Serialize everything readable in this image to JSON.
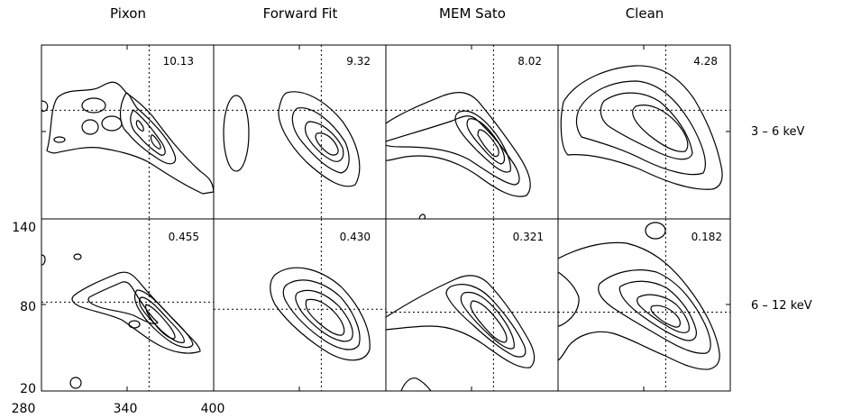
{
  "chart_data": {
    "type": "contour",
    "column_titles": [
      "Pixon",
      "Forward Fit",
      "MEM Sato",
      "Clean"
    ],
    "row_labels": [
      "3 – 6 keV",
      "6 – 12 keV"
    ],
    "panel_values": [
      [
        "10.13",
        "9.32",
        "8.02",
        "4.28"
      ],
      [
        "0.455",
        "0.430",
        "0.321",
        "0.182"
      ]
    ],
    "x_ticks": [
      "280",
      "340",
      "400"
    ],
    "y_ticks": [
      "140",
      "80",
      "20"
    ],
    "x_ticks_values": [
      280,
      340,
      400
    ],
    "y_ticks_values": [
      140,
      80,
      20
    ],
    "xlim": [
      280,
      400
    ],
    "ylim": [
      20,
      140
    ],
    "crosshair": [
      [
        [
          355,
          95
        ],
        [
          355,
          95
        ],
        [
          355,
          95
        ],
        [
          355,
          95
        ]
      ],
      [
        [
          355,
          82
        ],
        [
          355,
          77
        ],
        [
          355,
          75
        ],
        [
          355,
          75
        ]
      ]
    ],
    "grid": false
  }
}
